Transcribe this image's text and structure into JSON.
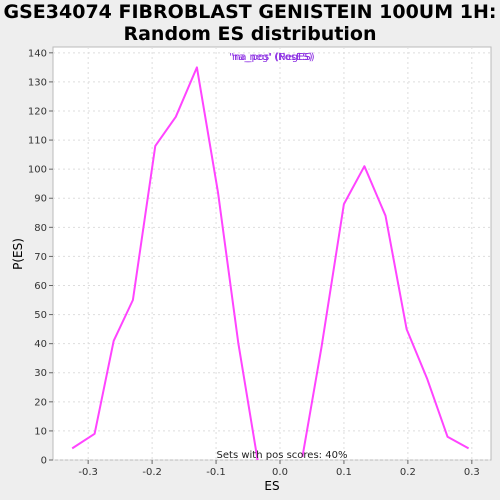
{
  "title_lines": [
    "GSE34074 FIBROBLAST GENISTEIN 100UM 1H:",
    "Random ES distribution"
  ],
  "chart_data": {
    "type": "line",
    "title": "GSE34074 FIBROBLAST GENISTEIN 100UM 1H: Random ES distribution",
    "xlabel": "ES",
    "ylabel": "P(ES)",
    "xlim": [
      -0.355,
      0.33
    ],
    "ylim": [
      0,
      142
    ],
    "xticks": [
      -0.3,
      -0.2,
      -0.1,
      0.0,
      0.1,
      0.2,
      0.3
    ],
    "xtick_labels": [
      "-0.3",
      "-0.2",
      "-0.1",
      "0.0",
      "0.1",
      "0.2",
      "0.3"
    ],
    "yticks": [
      0,
      10,
      20,
      30,
      40,
      50,
      60,
      70,
      80,
      90,
      100,
      110,
      120,
      130,
      140
    ],
    "grid": true,
    "legend_position": "top-center",
    "legend_entries": [
      "'na_neg' (NegES)",
      "'na_pos' (PosES)"
    ],
    "annotation": "Sets with pos scores: 40%",
    "series": [
      {
        "name": "'na_neg' (NegES)",
        "color": "#ff44ff",
        "x": [
          -0.325,
          -0.29,
          -0.26,
          -0.23,
          -0.195,
          -0.163,
          -0.13,
          -0.097,
          -0.065,
          -0.035
        ],
        "y": [
          4,
          9,
          41,
          55,
          108,
          118,
          135,
          92,
          40,
          0
        ]
      },
      {
        "name": "'na_pos' (PosES)",
        "color": "#ff44ff",
        "x": [
          0.035,
          0.065,
          0.1,
          0.132,
          0.165,
          0.198,
          0.23,
          0.262,
          0.295
        ],
        "y": [
          1,
          39,
          88,
          101,
          84,
          45,
          28,
          8,
          4
        ]
      }
    ]
  }
}
